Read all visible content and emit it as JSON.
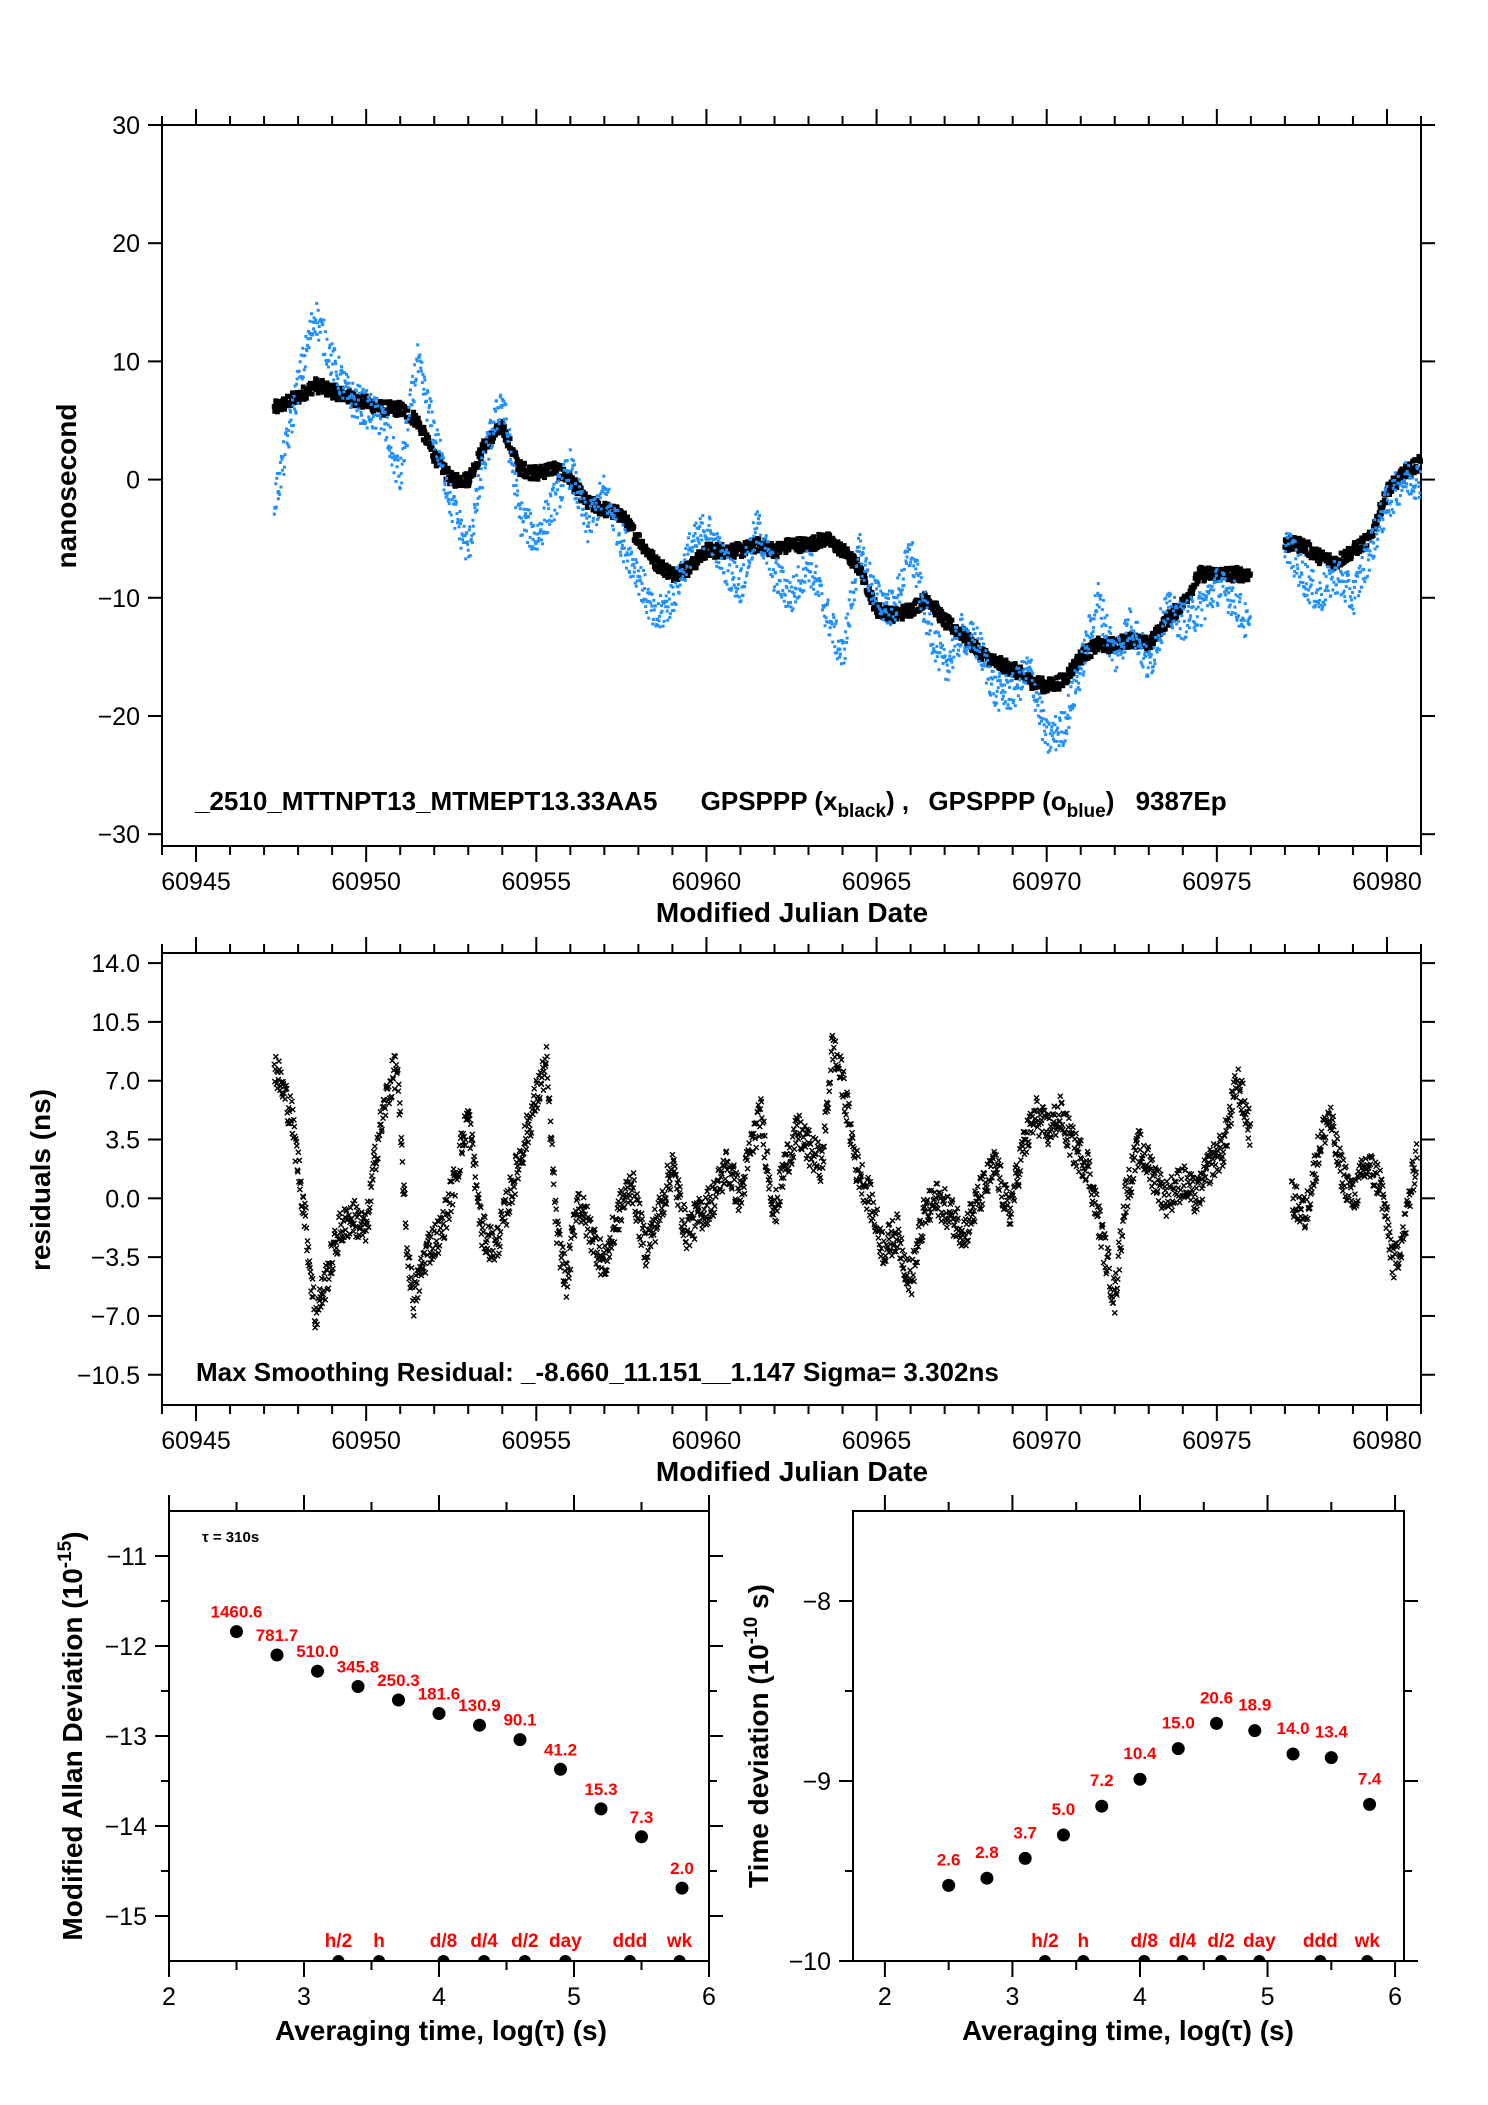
{
  "colors": {
    "series_black": "#000000",
    "series_blue": "#1e90ff",
    "annotation_red": "#ff0000"
  },
  "chart_data": [
    {
      "type": "scatter",
      "xlabel": "Modified Julian Date",
      "ylabel": "nanosecond",
      "xlim": [
        60944,
        60981
      ],
      "ylim": [
        -31,
        30
      ],
      "xticks": [
        60945,
        60950,
        60955,
        60960,
        60965,
        60970,
        60975,
        60980
      ],
      "yticks": [
        30,
        20,
        10,
        0,
        -10,
        -20,
        -30
      ],
      "ytick_labels": [
        "30",
        "20",
        "10",
        "0",
        "−10",
        "−20",
        "−30"
      ],
      "annotation": {
        "prefix": "_2510_MTTNPT13_MTMEPT13.33AA5",
        "series1": "GPSPPP (x",
        "series1_sub": "black",
        "sep": ") ,",
        "series2": "GPSPPP (o",
        "series2_sub": "blue",
        "close2": ")",
        "suffix": "9387Ep"
      },
      "series": [
        {
          "marker": "x",
          "color": "#000000",
          "x": [
            60947.3,
            60948,
            60948.5,
            60949,
            60949.5,
            60950,
            60950.5,
            60951,
            60951.5,
            60952,
            60952.5,
            60953,
            60953.5,
            60954,
            60954.5,
            60955,
            60955.5,
            60956,
            60956.5,
            60957,
            60957.5,
            60958,
            60958.5,
            60959,
            60959.5,
            60960,
            60960.5,
            60961,
            60961.5,
            60962,
            60962.5,
            60963,
            60963.5,
            60964,
            60964.5,
            60965,
            60965.5,
            60966,
            60966.5,
            60967,
            60967.5,
            60968,
            60968.5,
            60969,
            60969.5,
            60970,
            60970.5,
            60971,
            60971.5,
            60972,
            60972.5,
            60973,
            60973.5,
            60974,
            60974.5,
            60975,
            60975.5,
            60976,
            null,
            60977,
            60977.5,
            60978,
            60978.5,
            60979,
            60979.5,
            60980,
            60980.5,
            60981
          ],
          "y": [
            6,
            7,
            8,
            7.5,
            7,
            6.5,
            6,
            6,
            5,
            2,
            0,
            0,
            3,
            4.5,
            1,
            0.5,
            1,
            0,
            -2,
            -2.5,
            -3,
            -5,
            -7,
            -8,
            -7.5,
            -6,
            -6,
            -6,
            -5.5,
            -6,
            -5.5,
            -5.5,
            -5,
            -6,
            -7.5,
            -11,
            -11.5,
            -11,
            -10,
            -12,
            -13,
            -14.5,
            -15.5,
            -16,
            -17,
            -17.5,
            -17,
            -15,
            -14,
            -14,
            -13.5,
            -14,
            -12,
            -10.5,
            -8,
            -8,
            -8,
            -8,
            null,
            -5.5,
            -5.5,
            -6.5,
            -7,
            -6,
            -5,
            -1,
            0.5,
            1.5
          ]
        },
        {
          "marker": "o",
          "color": "#1e90ff",
          "x": [
            60947.3,
            60947.6,
            60948,
            60948.5,
            60949,
            60949.5,
            60950,
            60950.5,
            60951,
            60951.5,
            60952,
            60952.5,
            60953,
            60953.5,
            60954,
            60954.5,
            60955,
            60955.5,
            60956,
            60956.5,
            60957,
            60957.5,
            60958,
            60958.5,
            60959,
            60959.5,
            60960,
            60960.5,
            60961,
            60961.5,
            60962,
            60962.5,
            60963,
            60963.5,
            60964,
            60964.5,
            60965,
            60965.5,
            60966,
            60966.5,
            60967,
            60967.5,
            60968,
            60968.5,
            60969,
            60969.5,
            60970,
            60970.5,
            60971,
            60971.5,
            60972,
            60972.5,
            60973,
            60973.5,
            60974,
            60974.5,
            60975,
            60975.5,
            60976,
            null,
            60977,
            60977.5,
            60978,
            60978.5,
            60979,
            60979.5,
            60980,
            60980.5,
            60981
          ],
          "y": [
            -2,
            2,
            8,
            14,
            10,
            7,
            6,
            5,
            0,
            10,
            4,
            -2,
            -6,
            2,
            7,
            -3,
            -5,
            -2,
            1,
            -4,
            -1,
            -5,
            -8,
            -12,
            -10,
            -6,
            -4,
            -7,
            -9,
            -4,
            -8,
            -10,
            -7,
            -11,
            -15,
            -6,
            -10,
            -11,
            -6,
            -12,
            -16,
            -13,
            -14,
            -18,
            -18,
            -16,
            -22,
            -21,
            -16,
            -10,
            -15,
            -12,
            -16,
            -11,
            -12,
            -11,
            -9,
            -10,
            -13,
            null,
            -5,
            -8,
            -10,
            -8,
            -10,
            -6,
            -2,
            0,
            0
          ]
        }
      ]
    },
    {
      "type": "scatter",
      "xlabel": "Modified Julian Date",
      "ylabel": "residuals (ns)",
      "xlim": [
        60944,
        60981
      ],
      "ylim": [
        -12.3,
        14.6
      ],
      "xticks": [
        60945,
        60950,
        60955,
        60960,
        60965,
        60970,
        60975,
        60980
      ],
      "yticks": [
        14.0,
        10.5,
        7.0,
        3.5,
        0.0,
        -3.5,
        -7.0,
        -10.5
      ],
      "ytick_labels": [
        "14.0",
        "10.5",
        "7.0",
        "3.5",
        "0.0",
        "−3.5",
        "−7.0",
        "−10.5"
      ],
      "annotation": "Max Smoothing Residual: _-8.660_11.151__1.147  Sigma= 3.302ns",
      "series": [
        {
          "marker": "x",
          "color": "#000000",
          "x": [
            60947.3,
            60947.8,
            60948.2,
            60948.5,
            60948.8,
            60949.2,
            60949.6,
            60950,
            60950.3,
            60950.6,
            60950.9,
            60951.2,
            60951.4,
            60951.8,
            60952.2,
            60952.6,
            60953,
            60953.4,
            60953.8,
            60954.2,
            60954.6,
            60955,
            60955.3,
            60955.6,
            60955.9,
            60956.2,
            60956.6,
            60957,
            60957.4,
            60957.8,
            60958.2,
            60958.6,
            60959,
            60959.4,
            60959.8,
            60960.2,
            60960.6,
            60961,
            60961.3,
            60961.6,
            60962,
            60962.3,
            60962.7,
            60963,
            60963.4,
            60963.7,
            60964,
            60964.4,
            60964.8,
            60965.2,
            60965.6,
            60966,
            60966.4,
            60966.8,
            60967.2,
            60967.6,
            60968,
            60968.5,
            60968.9,
            60969.3,
            60969.7,
            60970,
            60970.4,
            60970.8,
            60971.2,
            60971.6,
            60972,
            60972.3,
            60972.7,
            60973,
            60973.5,
            60974,
            60974.4,
            60974.8,
            60975.2,
            60975.6,
            60976,
            null,
            60977.2,
            60977.6,
            60978,
            60978.3,
            60978.6,
            60979,
            60979.4,
            60979.8,
            60980.2,
            60980.5,
            60980.9
          ],
          "y": [
            8,
            5,
            -1,
            -7,
            -5,
            -2,
            -1,
            -2,
            3,
            6,
            8,
            -3,
            -6,
            -3,
            -2,
            1,
            5,
            -2,
            -3,
            0,
            3,
            6,
            8,
            -2,
            -5,
            0,
            -2,
            -4,
            -1,
            1,
            -3,
            -1,
            2,
            -2,
            -1,
            0,
            2,
            0,
            3,
            5,
            -1,
            2,
            4,
            3,
            2,
            9,
            7,
            2,
            0,
            -3,
            -2,
            -5,
            -1,
            0,
            -1,
            -2,
            0,
            2,
            -1,
            3,
            5,
            4,
            5,
            3,
            2,
            -2,
            -6,
            0,
            3,
            2,
            0,
            1,
            0,
            2,
            3,
            7,
            4,
            null,
            0,
            -1,
            3,
            5,
            2,
            0,
            2,
            1,
            -4,
            -2,
            3
          ]
        }
      ]
    },
    {
      "type": "scatter",
      "xlabel": "Averaging time, log(τ) (s)",
      "ylabel": "Modified Allan Deviation (10",
      "ylabel_sup": "-15",
      "ylabel_close": ")",
      "xlim": [
        2,
        6
      ],
      "ylim": [
        -15.5,
        -10.5
      ],
      "xticks": [
        2,
        3,
        4,
        5,
        6
      ],
      "yticks": [
        -11,
        -12,
        -13,
        -14,
        -15
      ],
      "ytick_labels": [
        "−11",
        "−12",
        "−13",
        "−14",
        "−15"
      ],
      "annotation": "τ = 310s",
      "x": [
        2.5,
        2.8,
        3.1,
        3.4,
        3.7,
        4.0,
        4.3,
        4.6,
        4.9,
        5.2,
        5.5,
        5.8
      ],
      "y": [
        -11.84,
        -12.1,
        -12.28,
        -12.45,
        -12.6,
        -12.75,
        -12.88,
        -13.04,
        -13.37,
        -13.81,
        -14.12,
        -14.69
      ],
      "point_labels": [
        "1460.6",
        "781.7",
        "510.0",
        "345.8",
        "250.3",
        "181.6",
        "130.9",
        "90.1",
        "41.2",
        "15.3",
        "7.3",
        "2.0"
      ],
      "interval_markers": {
        "labels": [
          "h/2",
          "h",
          "d/8",
          "d/4",
          "d/2",
          "day",
          "ddd",
          "wk"
        ],
        "x": [
          3.255,
          3.556,
          4.033,
          4.334,
          4.636,
          4.936,
          5.414,
          5.782
        ]
      }
    },
    {
      "type": "scatter",
      "xlabel": "Averaging time, log(τ) (s)",
      "ylabel": "Time deviation (10",
      "ylabel_sup": "-10",
      "ylabel_close": " s)",
      "xlim": [
        1.75,
        6.07
      ],
      "ylim": [
        -10,
        -7.5
      ],
      "xticks": [
        2,
        3,
        4,
        5,
        6
      ],
      "yticks": [
        -8,
        -9,
        -10
      ],
      "ytick_labels": [
        "−8",
        "−9",
        "−10"
      ],
      "x": [
        2.5,
        2.8,
        3.1,
        3.4,
        3.7,
        4.0,
        4.3,
        4.6,
        4.9,
        5.2,
        5.5,
        5.8
      ],
      "y": [
        -9.58,
        -9.54,
        -9.43,
        -9.3,
        -9.14,
        -8.99,
        -8.82,
        -8.68,
        -8.72,
        -8.85,
        -8.87,
        -9.13
      ],
      "point_labels": [
        "2.6",
        "2.8",
        "3.7",
        "5.0",
        "7.2",
        "10.4",
        "15.0",
        "20.6",
        "18.9",
        "14.0",
        "13.4",
        "7.4"
      ],
      "interval_markers": {
        "labels": [
          "h/2",
          "h",
          "d/8",
          "d/4",
          "d/2",
          "day",
          "ddd",
          "wk"
        ],
        "x": [
          3.255,
          3.556,
          4.033,
          4.334,
          4.636,
          4.936,
          5.414,
          5.782
        ]
      }
    }
  ]
}
